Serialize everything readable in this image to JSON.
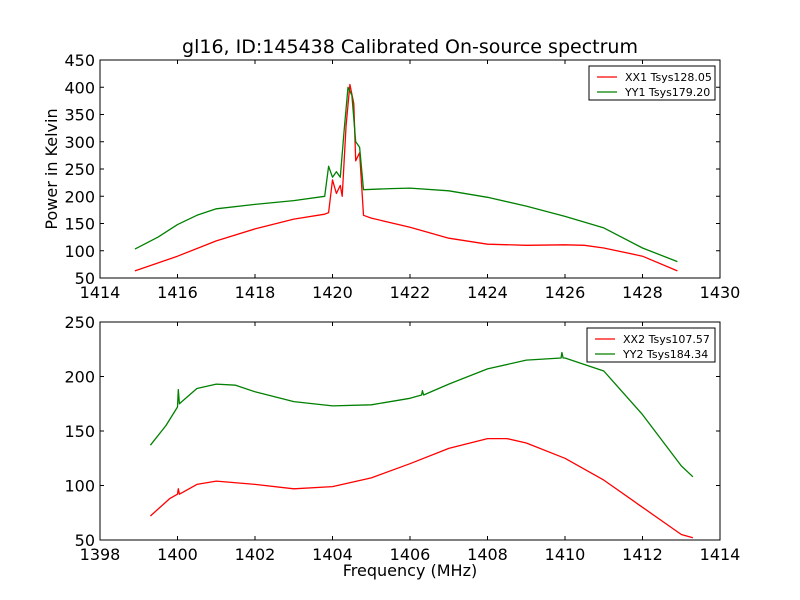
{
  "chart_data": [
    {
      "type": "line",
      "title": "gl16, ID:145438 Calibrated On-source spectrum",
      "xlabel": "",
      "ylabel": "Power in Kelvin",
      "xlim": [
        1414,
        1430
      ],
      "ylim": [
        50,
        450
      ],
      "xticks": [
        1414,
        1416,
        1418,
        1420,
        1422,
        1424,
        1426,
        1428,
        1430
      ],
      "yticks": [
        50,
        100,
        150,
        200,
        250,
        300,
        350,
        400,
        450
      ],
      "legend_position": "top-right",
      "grid": false,
      "series": [
        {
          "name": "XX1 Tsys128.05",
          "color": "#ff0000",
          "x": [
            1414.9,
            1416,
            1417,
            1418,
            1419,
            1419.8,
            1419.9,
            1420,
            1420.1,
            1420.2,
            1420.25,
            1420.35,
            1420.45,
            1420.55,
            1420.6,
            1420.7,
            1420.8,
            1421,
            1422,
            1423,
            1424,
            1425,
            1426,
            1426.5,
            1427,
            1428,
            1428.9
          ],
          "y": [
            63,
            90,
            118,
            140,
            158,
            167,
            170,
            230,
            205,
            220,
            200,
            330,
            405,
            370,
            265,
            280,
            165,
            160,
            143,
            123,
            112,
            110,
            111,
            110,
            105,
            90,
            63
          ]
        },
        {
          "name": "YY1 Tsys179.20",
          "color": "#008000",
          "x": [
            1414.9,
            1415.5,
            1416,
            1416.5,
            1417,
            1418,
            1419,
            1419.8,
            1419.9,
            1420,
            1420.1,
            1420.2,
            1420.3,
            1420.4,
            1420.5,
            1420.6,
            1420.7,
            1420.8,
            1421.5,
            1422,
            1423,
            1424,
            1425,
            1426,
            1427,
            1428,
            1428.9
          ],
          "y": [
            103,
            125,
            148,
            165,
            177,
            185,
            192,
            200,
            255,
            235,
            245,
            235,
            320,
            400,
            385,
            300,
            290,
            212,
            214,
            215,
            210,
            198,
            182,
            163,
            142,
            105,
            80
          ]
        }
      ]
    },
    {
      "type": "line",
      "title": "",
      "xlabel": "Frequency (MHz)",
      "ylabel": "",
      "xlim": [
        1398,
        1414
      ],
      "ylim": [
        50,
        250
      ],
      "xticks": [
        1398,
        1400,
        1402,
        1404,
        1406,
        1408,
        1410,
        1412,
        1414
      ],
      "yticks": [
        50,
        100,
        150,
        200,
        250
      ],
      "legend_position": "top-right",
      "grid": false,
      "series": [
        {
          "name": "XX2 Tsys107.57",
          "color": "#ff0000",
          "x": [
            1399.3,
            1399.8,
            1400,
            1400.02,
            1400.05,
            1400.5,
            1401,
            1402,
            1403,
            1404,
            1405,
            1406,
            1407,
            1408,
            1408.5,
            1409,
            1410,
            1411,
            1412,
            1413,
            1413.3
          ],
          "y": [
            72,
            88,
            92,
            97,
            92,
            101,
            104,
            101,
            97,
            99,
            107,
            120,
            134,
            143,
            143,
            139,
            125,
            105,
            80,
            55,
            52
          ]
        },
        {
          "name": "YY2 Tsys184.34",
          "color": "#008000",
          "x": [
            1399.3,
            1399.7,
            1400,
            1400.02,
            1400.05,
            1400.5,
            1401,
            1401.5,
            1402,
            1403,
            1404,
            1405,
            1406,
            1406.3,
            1406.32,
            1406.35,
            1407,
            1408,
            1409,
            1409.9,
            1409.92,
            1409.95,
            1410,
            1411,
            1412,
            1413,
            1413.3
          ],
          "y": [
            137,
            155,
            172,
            188,
            175,
            189,
            193,
            192,
            186,
            177,
            173,
            174,
            180,
            183,
            187,
            183,
            193,
            207,
            215,
            217,
            222,
            217,
            217,
            205,
            165,
            118,
            108
          ]
        }
      ]
    }
  ]
}
